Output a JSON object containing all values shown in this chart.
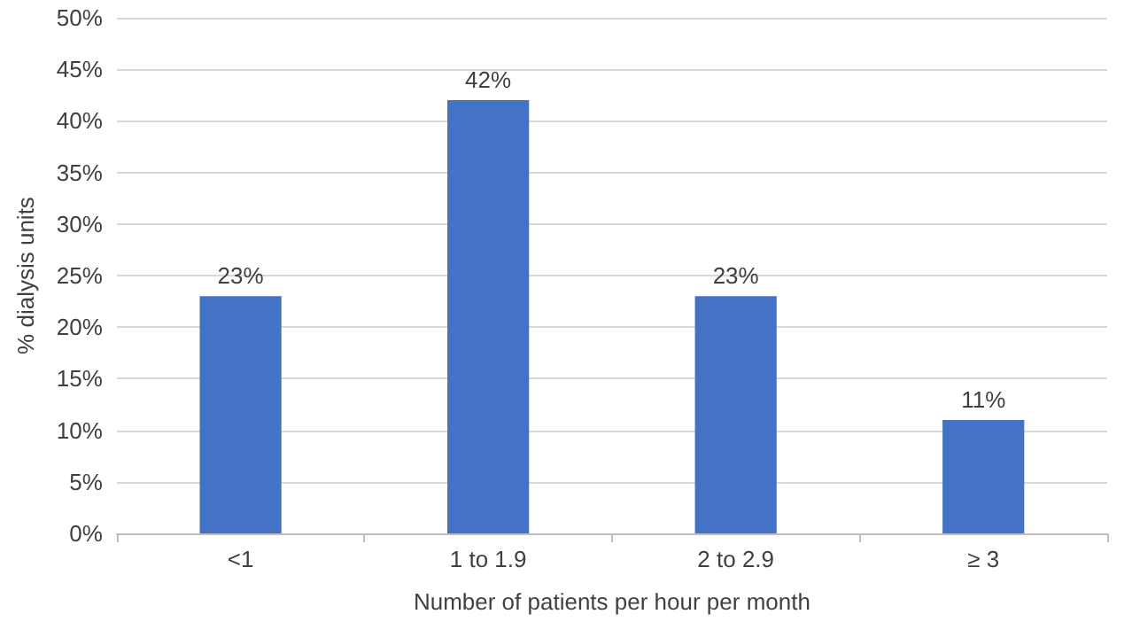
{
  "chart_data": {
    "type": "bar",
    "xlabel": "Number of patients per hour per month",
    "ylabel": "% dialysis units",
    "categories": [
      "<1",
      "1 to 1.9",
      "2 to 2.9",
      "≥ 3"
    ],
    "values": [
      23,
      42,
      23,
      11
    ],
    "value_labels": [
      "23%",
      "42%",
      "23%",
      "11%"
    ],
    "color": "#4472c4",
    "ylim": [
      0,
      50
    ],
    "yticks": [
      {
        "value": 0,
        "label": "0%"
      },
      {
        "value": 5,
        "label": "5%"
      },
      {
        "value": 10,
        "label": "10%"
      },
      {
        "value": 15,
        "label": "15%"
      },
      {
        "value": 20,
        "label": "20%"
      },
      {
        "value": 25,
        "label": "25%"
      },
      {
        "value": 30,
        "label": "30%"
      },
      {
        "value": 35,
        "label": "35%"
      },
      {
        "value": 40,
        "label": "40%"
      },
      {
        "value": 45,
        "label": "45%"
      },
      {
        "value": 50,
        "label": "50%"
      }
    ],
    "grid": "y"
  }
}
